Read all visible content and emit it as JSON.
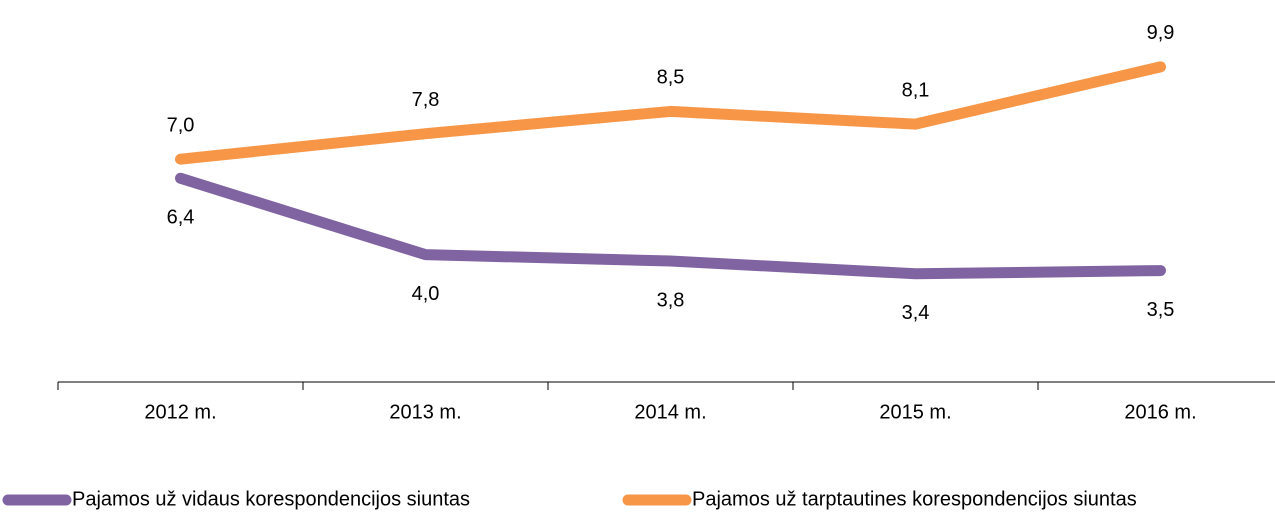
{
  "chart_data": {
    "type": "line",
    "categories": [
      "2012 m.",
      "2013 m.",
      "2014 m.",
      "2015 m.",
      "2016 m."
    ],
    "series": [
      {
        "name": "Pajamos už vidaus korespondencijos siuntas",
        "color": "#8064a2",
        "values": [
          6.4,
          4.0,
          3.8,
          3.4,
          3.5
        ],
        "value_labels": [
          "6,4",
          "4,0",
          "3,8",
          "3,4",
          "3,5"
        ]
      },
      {
        "name": "Pajamos už tarptautines korespondencijos siuntas",
        "color": "#f79646",
        "values": [
          7.0,
          7.8,
          8.5,
          8.1,
          9.9
        ],
        "value_labels": [
          "7,0",
          "7,8",
          "8,5",
          "8,1",
          "9,9"
        ]
      }
    ],
    "ylim": [
      0,
      12
    ],
    "legend": "bottom"
  }
}
